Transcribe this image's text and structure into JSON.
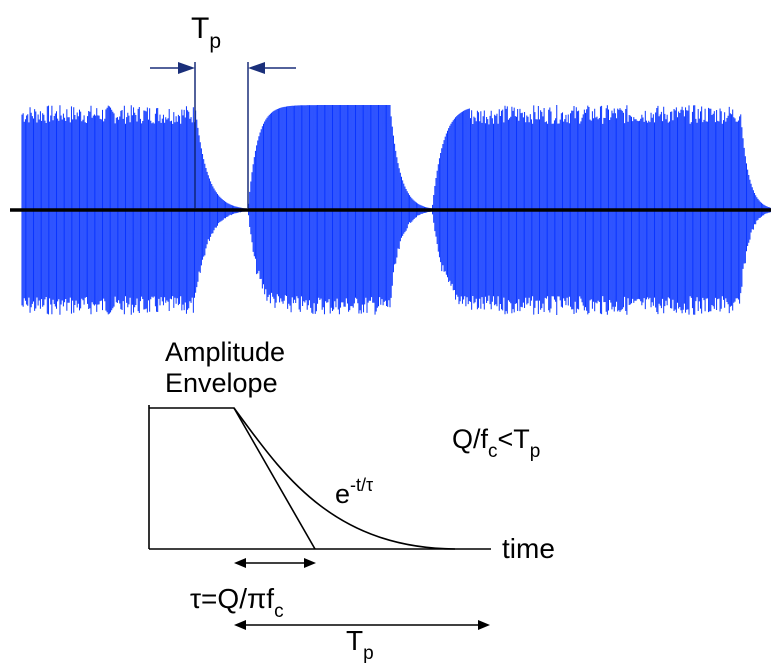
{
  "top_label": {
    "base": "T",
    "sub": "p"
  },
  "envelope_title": {
    "line1": "Amplitude",
    "line2": "Envelope"
  },
  "condition": {
    "q": "Q/f",
    "sub": "c",
    "lt": "<T",
    "sub2": "p"
  },
  "decay_label": {
    "base": "e",
    "sup": "-t/τ"
  },
  "time_label": "time",
  "tau_label": {
    "text": "τ=Q/πf",
    "sub": "c"
  },
  "bottom_label": {
    "base": "T",
    "sub": "p"
  },
  "colors": {
    "signal": "#0a35ff",
    "axis": "#000000",
    "arrow": "#1a2f7a"
  }
}
